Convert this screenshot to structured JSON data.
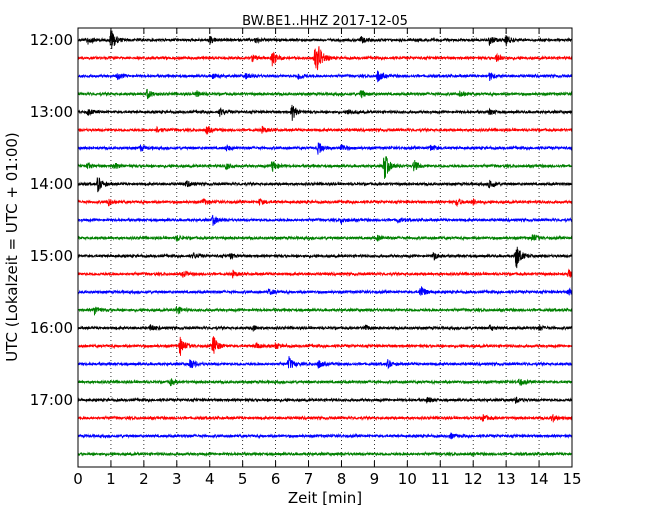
{
  "chart_data": {
    "type": "line",
    "title": "BW.BE1..HHZ 2017-12-05",
    "xlabel": "Zeit  [min]",
    "ylabel": "UTC (Lokalzeit = UTC + 01:00)",
    "xlim": [
      0,
      15
    ],
    "x_ticks": [
      "0",
      "1",
      "2",
      "3",
      "4",
      "5",
      "6",
      "7",
      "8",
      "9",
      "10",
      "11",
      "12",
      "13",
      "14",
      "15"
    ],
    "y_ticks": [
      "12:00",
      "13:00",
      "14:00",
      "15:00",
      "16:00",
      "17:00"
    ],
    "row_start_time": "12:00",
    "row_interval_min": 15,
    "row_colors": [
      "#000000",
      "#ff0000",
      "#0000ff",
      "#008000"
    ],
    "grid": "vertical-dotted",
    "rows": [
      {
        "events": [
          [
            0.3,
            4
          ],
          [
            1.0,
            12
          ],
          [
            4.0,
            4
          ],
          [
            5.4,
            3
          ],
          [
            8.6,
            3
          ],
          [
            12.5,
            5
          ],
          [
            13.0,
            5
          ]
        ]
      },
      {
        "events": [
          [
            5.3,
            3
          ],
          [
            5.9,
            8
          ],
          [
            7.2,
            14
          ],
          [
            7.3,
            8
          ],
          [
            12.7,
            4
          ]
        ]
      },
      {
        "events": [
          [
            1.2,
            3
          ],
          [
            4.1,
            3
          ],
          [
            5.1,
            3
          ],
          [
            6.7,
            4
          ],
          [
            9.1,
            6
          ],
          [
            12.5,
            4
          ]
        ]
      },
      {
        "events": [
          [
            2.1,
            5
          ],
          [
            3.6,
            3
          ],
          [
            8.6,
            4
          ],
          [
            11.6,
            3
          ]
        ]
      },
      {
        "events": [
          [
            0.3,
            3
          ],
          [
            4.3,
            4
          ],
          [
            6.5,
            8
          ],
          [
            8.2,
            3
          ],
          [
            12.5,
            3
          ]
        ]
      },
      {
        "events": [
          [
            2.4,
            3
          ],
          [
            3.9,
            4
          ],
          [
            5.6,
            3
          ]
        ]
      },
      {
        "events": [
          [
            1.9,
            3
          ],
          [
            4.5,
            3
          ],
          [
            7.3,
            7
          ],
          [
            8.0,
            4
          ],
          [
            10.7,
            3
          ]
        ]
      },
      {
        "events": [
          [
            0.3,
            3
          ],
          [
            1.1,
            3
          ],
          [
            4.5,
            3
          ],
          [
            5.9,
            6
          ],
          [
            9.3,
            15
          ],
          [
            10.2,
            6
          ]
        ]
      },
      {
        "events": [
          [
            0.6,
            8
          ],
          [
            3.3,
            3
          ],
          [
            12.5,
            5
          ]
        ]
      },
      {
        "events": [
          [
            0.9,
            4
          ],
          [
            3.8,
            3
          ],
          [
            5.5,
            3
          ],
          [
            11.5,
            4
          ],
          [
            12.0,
            3
          ]
        ]
      },
      {
        "events": [
          [
            4.1,
            5
          ],
          [
            8.0,
            3
          ],
          [
            9.7,
            3
          ]
        ]
      },
      {
        "events": [
          [
            3.0,
            3
          ],
          [
            9.1,
            3
          ],
          [
            13.8,
            4
          ]
        ]
      },
      {
        "events": [
          [
            3.5,
            3
          ],
          [
            4.6,
            3
          ],
          [
            10.8,
            4
          ],
          [
            13.3,
            14
          ]
        ]
      },
      {
        "events": [
          [
            3.2,
            3
          ],
          [
            4.7,
            3
          ],
          [
            14.9,
            4
          ]
        ]
      },
      {
        "events": [
          [
            5.8,
            3
          ],
          [
            10.4,
            7
          ],
          [
            14.9,
            3
          ]
        ]
      },
      {
        "events": [
          [
            0.5,
            5
          ],
          [
            3.0,
            4
          ]
        ]
      },
      {
        "events": [
          [
            2.2,
            3
          ],
          [
            5.3,
            3
          ],
          [
            8.7,
            3
          ],
          [
            12.5,
            3
          ],
          [
            14.0,
            3
          ]
        ]
      },
      {
        "events": [
          [
            3.1,
            10
          ],
          [
            4.1,
            11
          ],
          [
            5.4,
            3
          ],
          [
            6.0,
            3
          ]
        ]
      },
      {
        "events": [
          [
            3.4,
            6
          ],
          [
            6.4,
            7
          ],
          [
            7.3,
            4
          ],
          [
            9.4,
            4
          ]
        ]
      },
      {
        "events": [
          [
            2.8,
            3
          ],
          [
            13.4,
            4
          ]
        ]
      },
      {
        "events": [
          [
            10.6,
            3
          ],
          [
            13.3,
            3
          ]
        ]
      },
      {
        "events": [
          [
            14.4,
            4
          ],
          [
            12.3,
            3
          ]
        ]
      },
      {
        "events": [
          [
            11.3,
            3
          ]
        ]
      },
      {
        "events": []
      }
    ]
  }
}
